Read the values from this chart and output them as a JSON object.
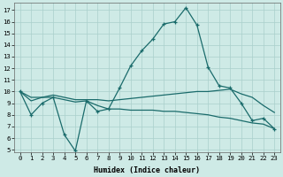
{
  "xlabel": "Humidex (Indice chaleur)",
  "x_ticks": [
    0,
    1,
    2,
    3,
    4,
    5,
    6,
    7,
    8,
    9,
    10,
    11,
    12,
    13,
    14,
    15,
    16,
    17,
    18,
    19,
    20,
    21,
    22,
    23
  ],
  "ylim": [
    4.8,
    17.6
  ],
  "yticks": [
    5,
    6,
    7,
    8,
    9,
    10,
    11,
    12,
    13,
    14,
    15,
    16,
    17
  ],
  "xlim": [
    -0.5,
    23.5
  ],
  "background_color": "#ceeae6",
  "grid_color": "#aacfcb",
  "line_color": "#1a6b6b",
  "line1": [
    10.0,
    8.0,
    9.0,
    9.5,
    6.3,
    4.9,
    9.2,
    8.3,
    8.5,
    10.3,
    12.2,
    13.5,
    14.5,
    15.8,
    16.0,
    17.2,
    15.7,
    12.1,
    10.5,
    10.3,
    9.0,
    7.5,
    7.7,
    6.8
  ],
  "line2": [
    10.0,
    9.2,
    9.5,
    9.7,
    9.5,
    9.3,
    9.3,
    9.3,
    9.2,
    9.3,
    9.4,
    9.5,
    9.6,
    9.7,
    9.8,
    9.9,
    10.0,
    10.0,
    10.1,
    10.2,
    9.8,
    9.5,
    8.8,
    8.2
  ],
  "line3": [
    10.0,
    9.5,
    9.5,
    9.5,
    9.3,
    9.1,
    9.2,
    8.8,
    8.5,
    8.5,
    8.4,
    8.4,
    8.4,
    8.3,
    8.3,
    8.2,
    8.1,
    8.0,
    7.8,
    7.7,
    7.5,
    7.3,
    7.2,
    6.8
  ]
}
